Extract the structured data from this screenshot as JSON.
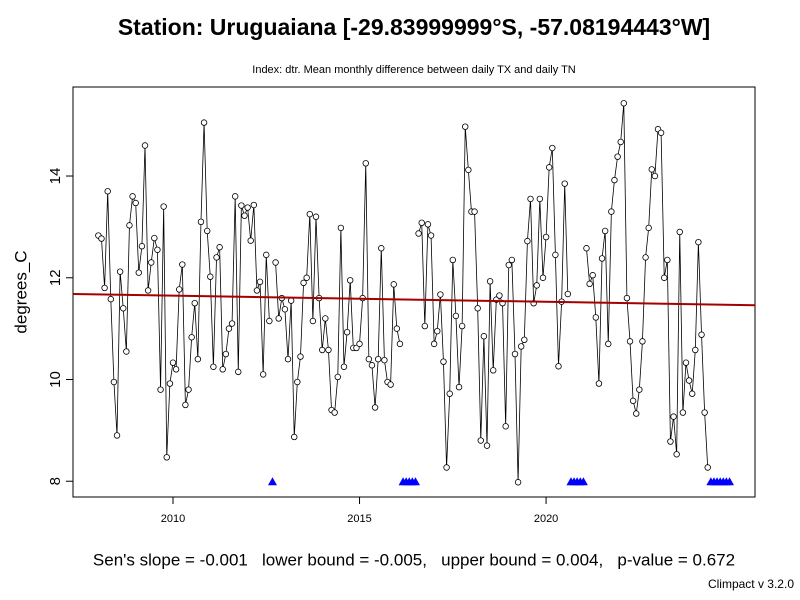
{
  "chart_data": {
    "type": "line",
    "title": "Station: Uruguaiana [-29.83999999°S, -57.08194443°W]",
    "subtitle": "Index: dtr. Mean monthly difference between daily TX and daily TN",
    "ylabel": "degrees_C",
    "footer": "Sen's slope = -0.001   lower bound = -0.005,   upper bound = 0.004,   p-value = 0.672",
    "credit": "Climpact v 3.2.0",
    "xlim": [
      2007.32,
      2025.6
    ],
    "ylim": [
      7.69,
      15.75
    ],
    "xticks": [
      2010,
      2015,
      2020
    ],
    "yticks": [
      8,
      10,
      12,
      14
    ],
    "grid": false,
    "x": [
      2008,
      2008.083,
      2008.167,
      2008.25,
      2008.333,
      2008.417,
      2008.5,
      2008.583,
      2008.667,
      2008.75,
      2008.833,
      2008.917,
      2009,
      2009.083,
      2009.167,
      2009.25,
      2009.333,
      2009.417,
      2009.5,
      2009.583,
      2009.667,
      2009.75,
      2009.833,
      2009.917,
      2010,
      2010.083,
      2010.167,
      2010.25,
      2010.333,
      2010.417,
      2010.5,
      2010.583,
      2010.667,
      2010.75,
      2010.833,
      2010.917,
      2011,
      2011.083,
      2011.167,
      2011.25,
      2011.333,
      2011.417,
      2011.5,
      2011.583,
      2011.667,
      2011.75,
      2011.833,
      2011.917,
      2012,
      2012.083,
      2012.167,
      2012.25,
      2012.333,
      2012.417,
      2012.5,
      2012.583,
      2012.667,
      2012.75,
      2012.833,
      2012.917,
      2013,
      2013.083,
      2013.167,
      2013.25,
      2013.333,
      2013.417,
      2013.5,
      2013.583,
      2013.667,
      2013.75,
      2013.833,
      2013.917,
      2014,
      2014.083,
      2014.167,
      2014.25,
      2014.333,
      2014.417,
      2014.5,
      2014.583,
      2014.667,
      2014.75,
      2014.833,
      2014.917,
      2015,
      2015.083,
      2015.167,
      2015.25,
      2015.333,
      2015.417,
      2015.5,
      2015.583,
      2015.667,
      2015.75,
      2015.833,
      2015.917,
      2016,
      2016.083,
      2016.167,
      2016.25,
      2016.333,
      2016.417,
      2016.5,
      2016.583,
      2016.667,
      2016.75,
      2016.833,
      2016.917,
      2017,
      2017.083,
      2017.167,
      2017.25,
      2017.333,
      2017.417,
      2017.5,
      2017.583,
      2017.667,
      2017.75,
      2017.833,
      2017.917,
      2018,
      2018.083,
      2018.167,
      2018.25,
      2018.333,
      2018.417,
      2018.5,
      2018.583,
      2018.667,
      2018.75,
      2018.833,
      2018.917,
      2019,
      2019.083,
      2019.167,
      2019.25,
      2019.333,
      2019.417,
      2019.5,
      2019.583,
      2019.667,
      2019.75,
      2019.833,
      2019.917,
      2020,
      2020.083,
      2020.167,
      2020.25,
      2020.333,
      2020.417,
      2020.5,
      2020.583,
      2020.667,
      2020.75,
      2020.833,
      2020.917,
      2021,
      2021.083,
      2021.167,
      2021.25,
      2021.333,
      2021.417,
      2021.5,
      2021.583,
      2021.667,
      2021.75,
      2021.833,
      2021.917,
      2022,
      2022.083,
      2022.167,
      2022.25,
      2022.333,
      2022.417,
      2022.5,
      2022.583,
      2022.667,
      2022.75,
      2022.833,
      2022.917,
      2023,
      2023.083,
      2023.167,
      2023.25,
      2023.333,
      2023.417,
      2023.5,
      2023.583,
      2023.667,
      2023.75,
      2023.833,
      2023.917,
      2024,
      2024.083,
      2024.167,
      2024.25,
      2024.333,
      2024.417,
      2024.5,
      2024.583,
      2024.667,
      2024.75,
      2024.833,
      2024.917
    ],
    "series": [
      {
        "name": "dtr",
        "color": "#000000",
        "values": [
          12.83,
          12.77,
          11.8,
          13.7,
          11.58,
          9.95,
          8.9,
          12.12,
          11.4,
          10.55,
          13.03,
          13.6,
          13.47,
          12.1,
          12.62,
          14.6,
          11.75,
          12.3,
          12.78,
          12.55,
          9.8,
          13.4,
          8.47,
          9.92,
          10.33,
          10.2,
          11.77,
          12.26,
          9.5,
          9.8,
          10.83,
          11.5,
          10.4,
          13.1,
          15.05,
          12.92,
          12.02,
          10.25,
          12.4,
          12.6,
          10.2,
          10.5,
          11.0,
          11.1,
          13.6,
          10.15,
          13.42,
          13.22,
          13.38,
          12.73,
          13.43,
          11.75,
          11.92,
          10.1,
          12.45,
          11.15,
          null,
          12.3,
          11.2,
          11.6,
          11.38,
          10.4,
          11.55,
          8.87,
          9.95,
          10.45,
          11.9,
          12.0,
          13.25,
          11.15,
          13.2,
          11.6,
          10.58,
          11.2,
          10.58,
          9.4,
          9.35,
          10.05,
          12.98,
          10.25,
          10.93,
          11.95,
          10.62,
          10.62,
          10.7,
          11.6,
          14.25,
          10.4,
          10.28,
          9.45,
          10.4,
          12.58,
          10.38,
          9.95,
          9.9,
          11.87,
          11.0,
          10.7,
          null,
          null,
          null,
          null,
          null,
          12.87,
          13.08,
          11.05,
          13.05,
          12.83,
          10.7,
          10.95,
          11.67,
          10.35,
          8.27,
          9.72,
          12.35,
          11.25,
          9.85,
          11.05,
          14.97,
          14.12,
          13.3,
          13.3,
          11.4,
          8.8,
          10.85,
          8.7,
          11.93,
          10.18,
          11.57,
          11.65,
          11.5,
          9.08,
          12.25,
          12.35,
          10.5,
          7.98,
          10.65,
          10.78,
          12.72,
          13.55,
          11.5,
          11.85,
          13.55,
          12.0,
          12.8,
          14.17,
          14.55,
          12.45,
          10.26,
          11.53,
          13.85,
          11.68,
          null,
          null,
          null,
          null,
          null,
          12.58,
          11.88,
          12.05,
          11.22,
          9.92,
          12.38,
          12.92,
          10.7,
          13.3,
          13.92,
          14.38,
          14.67,
          15.43,
          11.6,
          10.75,
          9.58,
          9.33,
          9.8,
          10.75,
          12.4,
          12.98,
          14.13,
          14.0,
          14.92,
          14.85,
          12.0,
          12.35,
          8.78,
          9.27,
          8.53,
          12.9,
          9.35,
          10.33,
          9.98,
          9.72,
          10.58,
          12.7,
          10.88,
          9.35,
          8.27,
          null,
          null,
          null,
          null,
          null,
          null,
          null
        ]
      }
    ],
    "trend_line": {
      "x": [
        2007.32,
        2025.6
      ],
      "y": [
        11.68,
        11.46
      ],
      "color": "#a50000"
    },
    "missing_marker": {
      "y": 8,
      "color": "#0000ff"
    }
  }
}
